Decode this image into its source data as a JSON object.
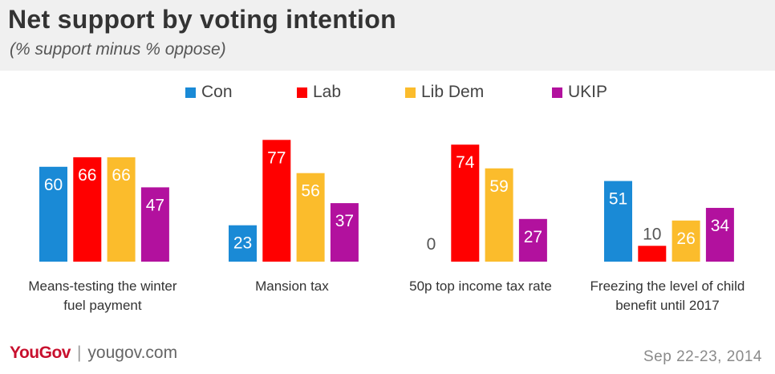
{
  "header": {
    "title": "Net support by voting intention",
    "subtitle": "(% support minus % oppose)"
  },
  "footer": {
    "logo": "YouGov",
    "url": "yougov.com",
    "date": "Sep 22-23, 2014"
  },
  "chart_data": {
    "type": "bar",
    "title": "Net support by voting intention",
    "subtitle": "(% support minus % oppose)",
    "xlabel": "",
    "ylabel": "",
    "ylim": [
      0,
      100
    ],
    "grid": false,
    "legend_position": "top",
    "categories": [
      [
        "Means-testing the winter",
        "fuel payment"
      ],
      [
        "Mansion tax"
      ],
      [
        "50p top income tax rate"
      ],
      [
        "Freezing the level of child",
        "benefit until 2017"
      ]
    ],
    "series": [
      {
        "name": "Con",
        "color": "#1a8ad6",
        "values": [
          60,
          23,
          0,
          51
        ]
      },
      {
        "name": "Lab",
        "color": "#ff0000",
        "values": [
          66,
          77,
          74,
          10
        ]
      },
      {
        "name": "Lib Dem",
        "color": "#fbbc2c",
        "values": [
          66,
          56,
          59,
          26
        ]
      },
      {
        "name": "UKIP",
        "color": "#b2119e",
        "values": [
          47,
          37,
          27,
          34
        ]
      }
    ]
  }
}
